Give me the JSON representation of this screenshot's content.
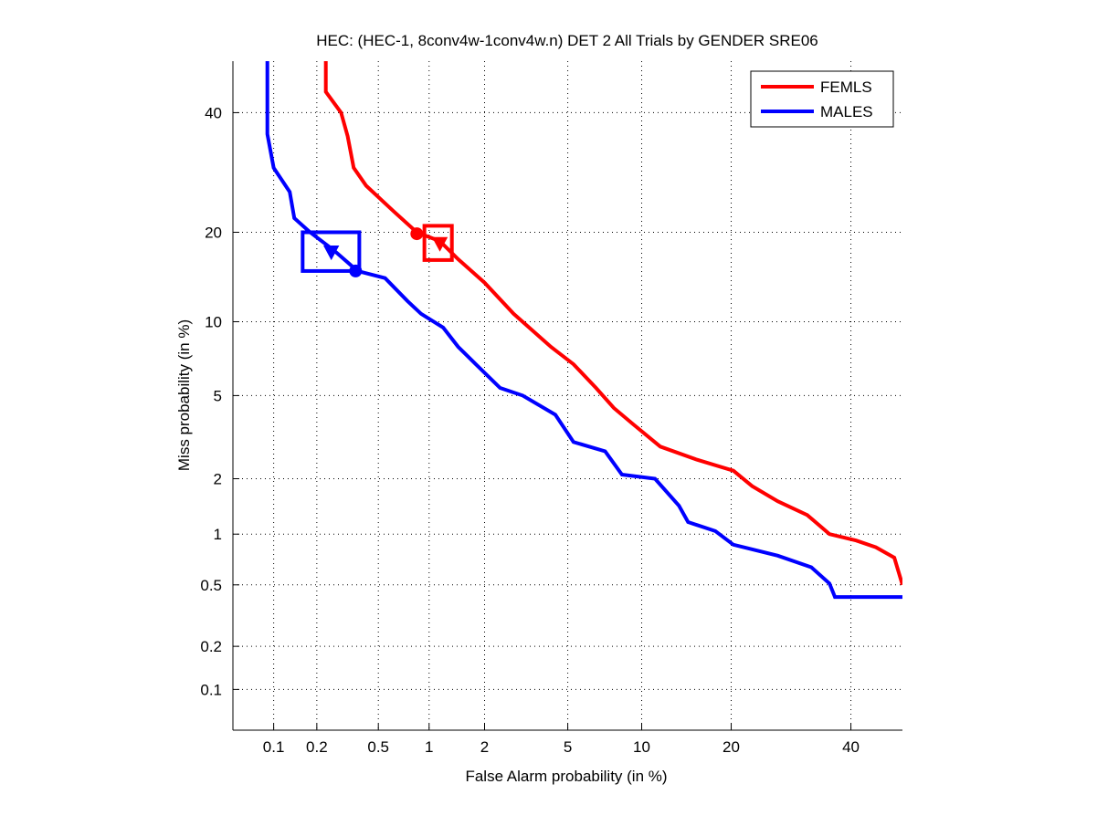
{
  "chart_data": {
    "type": "line",
    "title": "HEC: (HEC-1, 8conv4w-1conv4w.n) DET 2 All Trials by GENDER SRE06",
    "xlabel": "False Alarm probability (in %)",
    "ylabel": "Miss probability (in %)",
    "scale": "normal-deviate",
    "xlim": [
      0.05,
      50
    ],
    "ylim": [
      0.05,
      50
    ],
    "grid": true,
    "legend_position": "top-right",
    "xticks": [
      0.1,
      0.2,
      0.5,
      1,
      2,
      5,
      10,
      20,
      40
    ],
    "xtick_labels": [
      "0.1",
      "0.2",
      "0.5",
      "1",
      "2",
      "5",
      "10",
      "20",
      "40"
    ],
    "yticks": [
      0.1,
      0.2,
      0.5,
      1,
      2,
      5,
      10,
      20,
      40
    ],
    "ytick_labels": [
      "0.1",
      "0.2",
      "0.5",
      "1",
      "2",
      "5",
      "10",
      "20",
      "40"
    ],
    "series": [
      {
        "name": "FEMLS",
        "color": "#ff0000",
        "x": [
          0.23,
          0.23,
          0.29,
          0.32,
          0.35,
          0.42,
          0.62,
          0.85,
          1.15,
          1.45,
          2.0,
          2.8,
          4.2,
          5.3,
          6.6,
          7.8,
          9.3,
          11.7,
          15.6,
          20.3,
          23,
          27,
          32,
          36,
          41,
          44.8,
          48.4,
          50
        ],
        "y": [
          50,
          44,
          40,
          35.6,
          30,
          27,
          23,
          20,
          18.8,
          16.5,
          13.8,
          10.7,
          8,
          6.8,
          5.4,
          4.4,
          3.7,
          2.9,
          2.5,
          2.2,
          1.83,
          1.52,
          1.28,
          1.0,
          0.92,
          0.84,
          0.73,
          0.5
        ],
        "min_dcf": {
          "fa": 0.85,
          "miss": 19.8
        },
        "act_dcf": {
          "fa": 1.15,
          "miss": 18.5
        },
        "conf_box": {
          "fa": [
            0.94,
            1.34
          ],
          "miss": [
            16.4,
            20.9
          ]
        }
      },
      {
        "name": "MALES",
        "color": "#0000ff",
        "x": [
          0.09,
          0.09,
          0.1,
          0.13,
          0.14,
          0.18,
          0.26,
          0.37,
          0.55,
          0.75,
          0.9,
          1.2,
          1.45,
          1.8,
          2.4,
          3.1,
          4.4,
          5.3,
          7.2,
          8.4,
          11.2,
          13.6,
          14.6,
          17.9,
          20.3,
          27,
          32.7,
          36,
          37,
          50
        ],
        "y": [
          50,
          36,
          30,
          26,
          22,
          20,
          17.6,
          15.1,
          14.3,
          11.9,
          10.7,
          9.5,
          8,
          6.8,
          5.4,
          5,
          4.1,
          3.05,
          2.75,
          2.1,
          2.0,
          1.44,
          1.17,
          1.04,
          0.87,
          0.75,
          0.64,
          0.51,
          0.42,
          0.42
        ],
        "min_dcf": {
          "fa": 0.36,
          "miss": 15.1
        },
        "act_dcf": {
          "fa": 0.25,
          "miss": 17.4
        },
        "conf_box": {
          "fa": [
            0.16,
            0.38
          ],
          "miss": [
            15.1,
            20.0
          ]
        }
      }
    ]
  }
}
